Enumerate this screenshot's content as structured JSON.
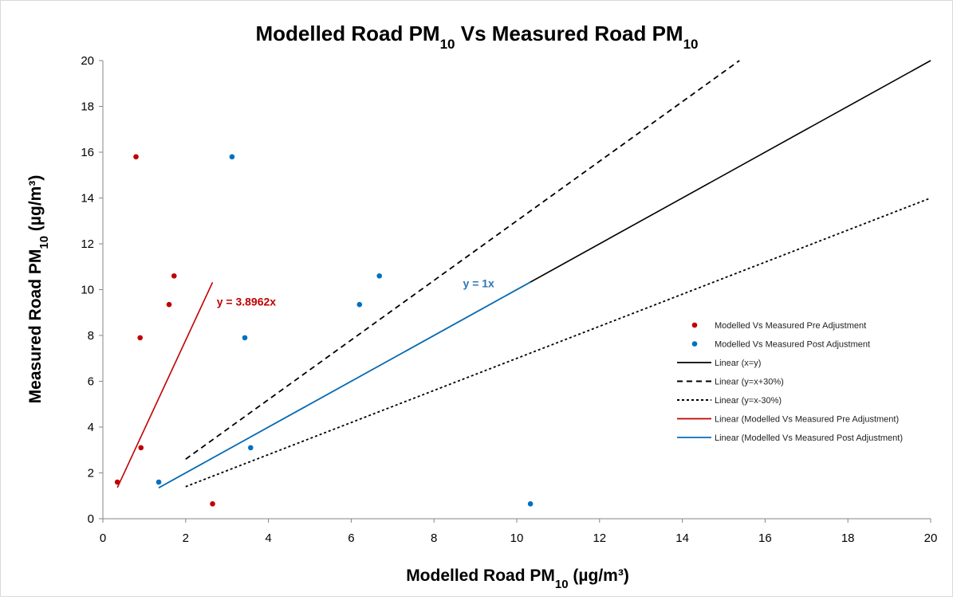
{
  "chart_data": {
    "type": "scatter",
    "title": "Modelled Road PM",
    "title_sub": "10",
    "title_mid": " Vs Measured Road PM",
    "title_sub2": "10",
    "xlabel_pre": "Modelled Road PM",
    "xlabel_sub": "10",
    "xlabel_post": " (µg/m³)",
    "ylabel_pre": "Measured Road PM",
    "ylabel_sub": "10",
    "ylabel_post": " (µg/m³)",
    "xlim": [
      0,
      20
    ],
    "ylim": [
      0,
      20
    ],
    "xticks": [
      0,
      2,
      4,
      6,
      8,
      10,
      12,
      14,
      16,
      18,
      20
    ],
    "yticks": [
      0,
      2,
      4,
      6,
      8,
      10,
      12,
      14,
      16,
      18,
      20
    ],
    "grid": false,
    "legend_position": "right",
    "colors": {
      "pre": "#c00000",
      "post": "#0070c0",
      "ref": "#000000"
    },
    "series": [
      {
        "name": "Modelled Vs Measured Pre Adjustment",
        "kind": "points",
        "color": "#c00000",
        "x": [
          0.35,
          0.8,
          0.9,
          0.92,
          1.6,
          1.72,
          2.65
        ],
        "y": [
          1.6,
          15.8,
          7.9,
          3.1,
          9.35,
          10.6,
          0.65
        ]
      },
      {
        "name": "Modelled Vs Measured Post Adjustment",
        "kind": "points",
        "color": "#0070c0",
        "x": [
          1.35,
          3.12,
          3.43,
          3.57,
          6.2,
          6.68,
          10.33
        ],
        "y": [
          1.6,
          15.8,
          7.9,
          3.1,
          9.35,
          10.6,
          0.65
        ]
      },
      {
        "name": "Linear (x=y)",
        "kind": "line",
        "color": "#000000",
        "dash": "solid",
        "x": [
          1.35,
          20
        ],
        "y": [
          1.35,
          20
        ]
      },
      {
        "name": "Linear (y=x+30%)",
        "kind": "line",
        "color": "#000000",
        "dash": "long",
        "x": [
          2,
          15.38
        ],
        "y": [
          2.6,
          20
        ]
      },
      {
        "name": "Linear (y=x-30%)",
        "kind": "line",
        "color": "#000000",
        "dash": "short",
        "x": [
          2,
          20
        ],
        "y": [
          1.4,
          14
        ]
      },
      {
        "name": "Linear (Modelled Vs Measured Pre Adjustment)",
        "kind": "line",
        "color": "#c00000",
        "dash": "solid",
        "x": [
          0.35,
          2.65
        ],
        "y": [
          1.36,
          10.32
        ]
      },
      {
        "name": "Linear (Modelled Vs Measured Post Adjustment)",
        "kind": "line",
        "color": "#0070c0",
        "dash": "solid",
        "x": [
          1.35,
          10.33
        ],
        "y": [
          1.35,
          10.33
        ]
      }
    ],
    "annotations": [
      {
        "text": "y = 3.8962x",
        "x": 2.75,
        "y": 9.3,
        "color": "#c00000"
      },
      {
        "text": "y = 1x",
        "x": 8.7,
        "y": 10.1,
        "color": "#2e75b6"
      }
    ]
  }
}
